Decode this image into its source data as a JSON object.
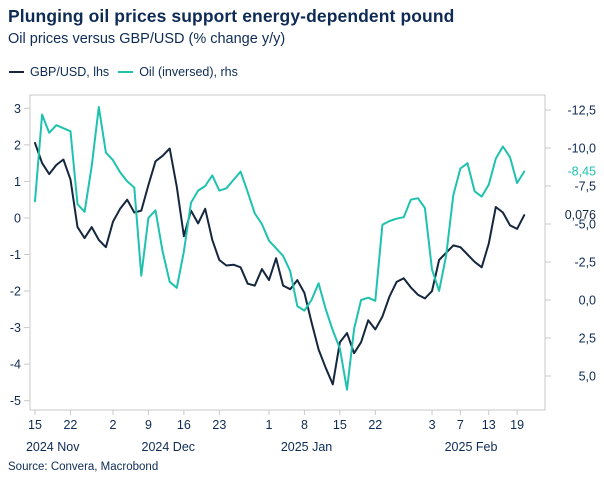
{
  "title": "Plunging oil prices support energy-dependent pound",
  "subtitle": "Oil prices versus GBP/USD (% change y/y)",
  "source": "Source: Convera, Macrobond",
  "colors": {
    "navy": "#15273e",
    "teal": "#1fc2ae",
    "text": "#0e2b55",
    "frame": "#c9c9c9"
  },
  "legend": [
    {
      "label": "GBP/USD, lhs",
      "color": "#15273e"
    },
    {
      "label": "Oil (inversed), rhs",
      "color": "#1fc2ae"
    }
  ],
  "chart_data": {
    "type": "line",
    "title": "Plunging oil prices support energy-dependent pound",
    "subtitle": "Oil prices versus GBP/USD (% change y/y)",
    "x_unit": "business days from 2024-11-15 to 2025-02-20",
    "x_tick_labels": [
      "15",
      "22",
      "2",
      "9",
      "16",
      "23",
      "1",
      "8",
      "15",
      "22",
      "3",
      "7",
      "13",
      "19"
    ],
    "x_tick_day_index": [
      0,
      5,
      11,
      16,
      21,
      26,
      33,
      38,
      43,
      48,
      56,
      60,
      64,
      68
    ],
    "month_labels": [
      {
        "label": "2024 Nov",
        "day_index": 2.5
      },
      {
        "label": "2024 Dec",
        "day_index": 18.8
      },
      {
        "label": "2025 Jan",
        "day_index": 38.3
      },
      {
        "label": "2025 Feb",
        "day_index": 61.5
      }
    ],
    "left_axis": {
      "min": -5,
      "max": 3,
      "tick_labels": [
        "3",
        "2",
        "1",
        "0",
        "-1",
        "-2",
        "-3",
        "-4",
        "-5"
      ],
      "tick_values": [
        3,
        2,
        1,
        0,
        -1,
        -2,
        -3,
        -4,
        -5
      ]
    },
    "right_axis": {
      "min": -12.5,
      "max": 5,
      "inverted": true,
      "tick_labels": [
        "-12,5",
        "-10,0",
        "-7,5",
        "-5,0",
        "-2,5",
        "0,0",
        "2,5",
        "5,0"
      ],
      "tick_values": [
        -12.5,
        -10,
        -7.5,
        -5,
        -2.5,
        0,
        2.5,
        5
      ]
    },
    "series": [
      {
        "name": "GBP/USD, lhs",
        "axis": "left",
        "color": "#15273e",
        "last_value_label": "0,076",
        "values": [
          2.05,
          1.5,
          1.2,
          1.45,
          1.6,
          1.05,
          -0.25,
          -0.55,
          -0.25,
          -0.6,
          -0.8,
          -0.1,
          0.25,
          0.5,
          0.15,
          0.2,
          0.9,
          1.55,
          1.7,
          1.9,
          0.85,
          -0.5,
          0.2,
          -0.15,
          0.25,
          -0.6,
          -1.15,
          -1.3,
          -1.28,
          -1.35,
          -1.8,
          -1.85,
          -1.4,
          -1.7,
          -1.1,
          -1.85,
          -1.95,
          -1.7,
          -2.05,
          -2.85,
          -3.6,
          -4.1,
          -4.55,
          -3.4,
          -3.15,
          -3.7,
          -3.4,
          -2.8,
          -3.05,
          -2.7,
          -2.15,
          -1.75,
          -1.65,
          -1.9,
          -2.1,
          -2.2,
          -2.0,
          -1.15,
          -0.95,
          -0.75,
          -0.8,
          -1.0,
          -1.2,
          -1.35,
          -0.7,
          0.3,
          0.15,
          -0.2,
          -0.3,
          0.076
        ]
      },
      {
        "name": "Oil (inversed), rhs",
        "axis": "right",
        "color": "#1fc2ae",
        "last_value_label": "-8,45",
        "values": [
          -6.5,
          -12.2,
          -11.0,
          -11.5,
          -11.3,
          -11.1,
          -6.3,
          -5.8,
          -8.8,
          -12.7,
          -9.7,
          -9.2,
          -8.4,
          -7.8,
          -7.4,
          -1.6,
          -5.4,
          -5.9,
          -3.2,
          -1.2,
          -0.8,
          -3.2,
          -6.4,
          -7.2,
          -7.5,
          -8.2,
          -7.2,
          -7.35,
          -7.9,
          -8.45,
          -7.1,
          -5.7,
          -5.0,
          -3.9,
          -3.4,
          -2.9,
          -1.9,
          0.4,
          0.7,
          0.0,
          -1.1,
          0.6,
          2.0,
          3.2,
          5.9,
          1.9,
          0.0,
          -0.15,
          0.05,
          -4.95,
          -5.2,
          -5.35,
          -5.45,
          -6.6,
          -6.7,
          -6.05,
          -2.0,
          -0.6,
          -2.95,
          -6.9,
          -8.65,
          -9.0,
          -7.15,
          -6.8,
          -7.6,
          -9.3,
          -10.1,
          -9.4,
          -7.7,
          -8.45
        ]
      }
    ]
  }
}
